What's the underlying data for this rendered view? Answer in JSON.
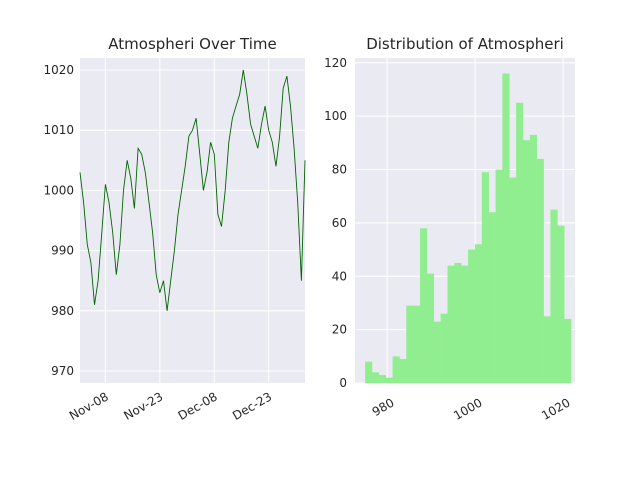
{
  "colors": {
    "panel_bg": "#EAEAF2",
    "grid": "#FFFFFF",
    "line": "#006400",
    "bar": "#90EE90"
  },
  "chart_data": [
    {
      "type": "line",
      "title": "Atmospheri Over Time",
      "xlabel": "",
      "ylabel": "",
      "x_ticks": [
        "Nov-08",
        "Nov-23",
        "Dec-08",
        "Dec-23"
      ],
      "x_tick_dates": [
        "2023-11-08",
        "2023-11-23",
        "2023-12-08",
        "2023-12-23"
      ],
      "x_range": [
        "2023-11-01",
        "2024-01-02"
      ],
      "ylim": [
        968,
        1022
      ],
      "y_ticks": [
        970,
        980,
        990,
        1000,
        1010,
        1020
      ],
      "grid": true,
      "series": [
        {
          "x": [
            "2023-11-01",
            "2023-11-02",
            "2023-11-03",
            "2023-11-04",
            "2023-11-05",
            "2023-11-06",
            "2023-11-07",
            "2023-11-08",
            "2023-11-09",
            "2023-11-10",
            "2023-11-11",
            "2023-11-12",
            "2023-11-13",
            "2023-11-14",
            "2023-11-15",
            "2023-11-16",
            "2023-11-17",
            "2023-11-18",
            "2023-11-19",
            "2023-11-20",
            "2023-11-21",
            "2023-11-22",
            "2023-11-23",
            "2023-11-24",
            "2023-11-25",
            "2023-11-26",
            "2023-11-27",
            "2023-11-28",
            "2023-11-29",
            "2023-11-30",
            "2023-12-01",
            "2023-12-02",
            "2023-12-03",
            "2023-12-04",
            "2023-12-05",
            "2023-12-06",
            "2023-12-07",
            "2023-12-08",
            "2023-12-09",
            "2023-12-10",
            "2023-12-11",
            "2023-12-12",
            "2023-12-13",
            "2023-12-14",
            "2023-12-15",
            "2023-12-16",
            "2023-12-17",
            "2023-12-18",
            "2023-12-19",
            "2023-12-20",
            "2023-12-21",
            "2023-12-22",
            "2023-12-23",
            "2023-12-24",
            "2023-12-25",
            "2023-12-26",
            "2023-12-27",
            "2023-12-28",
            "2023-12-29",
            "2023-12-30",
            "2023-12-31",
            "2024-01-01",
            "2024-01-02"
          ],
          "y": [
            1003,
            998,
            991,
            988,
            981,
            985,
            993,
            1001,
            998,
            993,
            986,
            991,
            1000,
            1005,
            1002,
            997,
            1007,
            1006,
            1003,
            998,
            993,
            986,
            983,
            985,
            980,
            985,
            990,
            996,
            1000,
            1004,
            1009,
            1010,
            1012,
            1006,
            1000,
            1003,
            1008,
            1006,
            996,
            994,
            1000,
            1008,
            1012,
            1014,
            1016,
            1020,
            1016,
            1011,
            1009,
            1007,
            1011,
            1014,
            1010,
            1008,
            1004,
            1009,
            1017,
            1019,
            1014,
            1007,
            998,
            985,
            1005
          ]
        }
      ]
    },
    {
      "type": "bar",
      "title": "Distribution of Atmospheri",
      "xlabel": "",
      "ylabel": "",
      "xlim": [
        972.7,
        1022.7
      ],
      "ylim": [
        0,
        121.8
      ],
      "x_ticks": [
        980,
        1000,
        1020
      ],
      "y_ticks": [
        0,
        20,
        40,
        60,
        80,
        100,
        120
      ],
      "grid": true,
      "bin_start": 975,
      "bin_width": 1.56,
      "values": [
        8,
        4,
        3,
        2,
        10,
        9,
        29,
        29,
        58,
        41,
        23,
        26,
        44,
        45,
        44,
        50,
        52,
        79,
        64,
        80,
        116,
        77,
        105,
        91,
        93,
        84,
        25,
        65,
        59,
        24
      ]
    }
  ]
}
